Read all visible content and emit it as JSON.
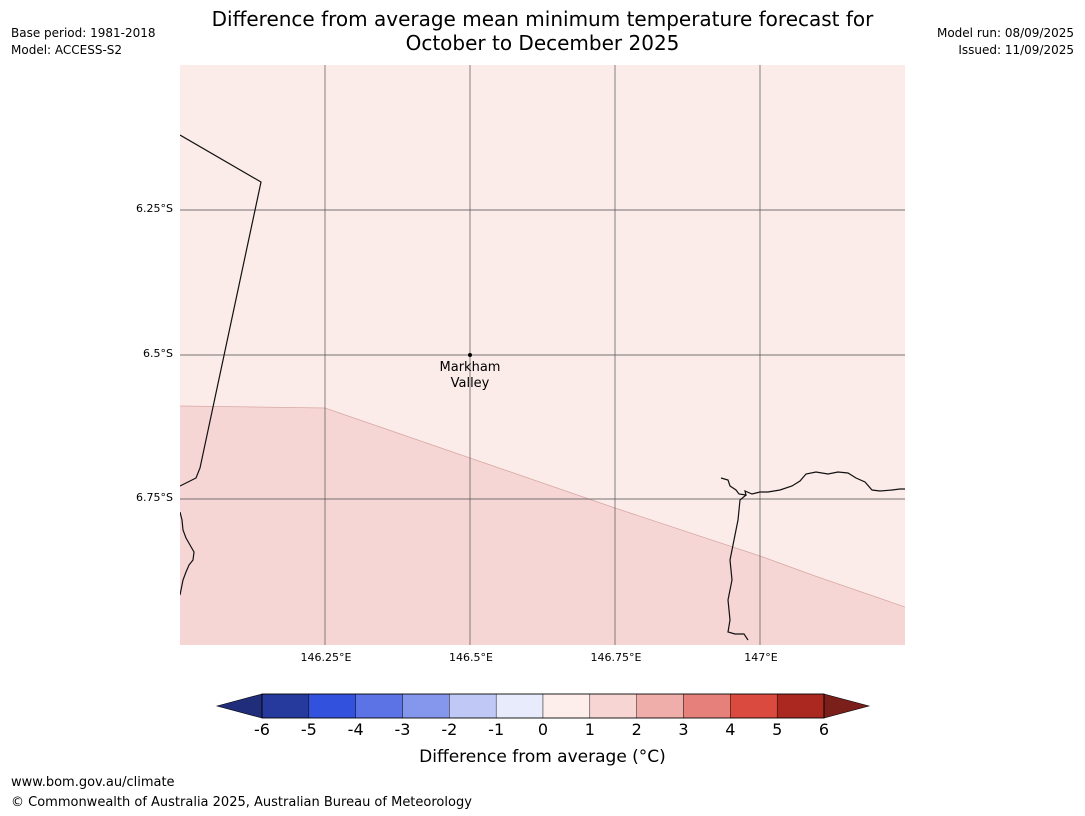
{
  "header": {
    "base_period": "Base period: 1981-2018",
    "model": "Model: ACCESS-S2",
    "model_run": "Model run: 08/09/2025",
    "issued": "Issued: 11/09/2025",
    "title_line1": "Difference from average mean minimum temperature forecast for",
    "title_line2": "October to December 2025"
  },
  "map": {
    "latitude_labels": [
      "6.25°S",
      "6.5°S",
      "6.75°S"
    ],
    "longitude_labels": [
      "146.25°E",
      "146.5°E",
      "146.75°E",
      "147°E"
    ],
    "place": {
      "line1": "Markham",
      "line2": "Valley",
      "lon": 146.5,
      "lat": -6.5
    },
    "zones": [
      {
        "category": "0 to 1",
        "color": "#fbebe9"
      },
      {
        "category": "1 to 2",
        "color": "#f6d6d4"
      }
    ]
  },
  "legend": {
    "label": "Difference from average (°C)",
    "ticks": [
      "-6",
      "-5",
      "-4",
      "-3",
      "-2",
      "-1",
      "0",
      "1",
      "2",
      "3",
      "4",
      "5",
      "6"
    ],
    "colors": [
      "#263a9d",
      "#3251dc",
      "#5b73e4",
      "#8497ec",
      "#c0c8f5",
      "#e8ebfb",
      "#fdeeec",
      "#f7d5d3",
      "#efaea9",
      "#e6807a",
      "#db4a3e",
      "#aa2820"
    ],
    "low_color": "#1f2d7a",
    "high_color": "#7a1f19"
  },
  "footer": {
    "url": "www.bom.gov.au/climate",
    "copyright": "© Commonwealth of Australia 2025, Australian Bureau of Meteorology"
  }
}
